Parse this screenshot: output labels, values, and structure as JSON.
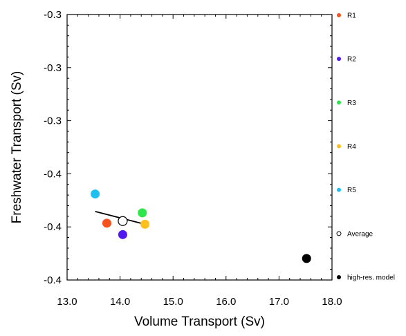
{
  "chart_data": {
    "type": "scatter",
    "xlabel": "Volume Transport (Sv)",
    "ylabel": "Freshwater Transport (Sv)",
    "xlim": [
      13.0,
      18.0
    ],
    "ylim": [
      -0.4,
      -0.3
    ],
    "x_ticks": [
      13.0,
      14.0,
      15.0,
      16.0,
      17.0,
      18.0
    ],
    "x_tick_labels": [
      "13.0",
      "14.0",
      "15.0",
      "16.0",
      "17.0",
      "18.0"
    ],
    "y_ticks": [
      -0.4,
      -0.38,
      -0.36,
      -0.34,
      -0.32,
      -0.3
    ],
    "y_tick_labels": [
      "-0.4",
      "-0.4",
      "-0.4",
      "-0.3",
      "-0.3",
      "-0.3"
    ],
    "grid": false,
    "legend_position": "right",
    "series": [
      {
        "name": "R1",
        "color": "#f5501e",
        "filled": true,
        "x": [
          13.75
        ],
        "y": [
          -0.3786
        ]
      },
      {
        "name": "R2",
        "color": "#4f18f0",
        "filled": true,
        "x": [
          14.05
        ],
        "y": [
          -0.3829
        ]
      },
      {
        "name": "R3",
        "color": "#2ee64a",
        "filled": true,
        "x": [
          14.42
        ],
        "y": [
          -0.3747
        ]
      },
      {
        "name": "R4",
        "color": "#ffbf1f",
        "filled": true,
        "x": [
          14.47
        ],
        "y": [
          -0.379
        ]
      },
      {
        "name": "R5",
        "color": "#1ec0f0",
        "filled": true,
        "x": [
          13.53
        ],
        "y": [
          -0.3676
        ]
      },
      {
        "name": "Average",
        "color": "#000000",
        "filled": false,
        "x": [
          14.05
        ],
        "y": [
          -0.3778
        ]
      },
      {
        "name": "high-res. model",
        "color": "#000000",
        "filled": true,
        "x": [
          17.52
        ],
        "y": [
          -0.3919
        ]
      }
    ],
    "fit_line": {
      "x": [
        13.53,
        14.47
      ],
      "y": [
        -0.3742,
        -0.379
      ]
    }
  }
}
